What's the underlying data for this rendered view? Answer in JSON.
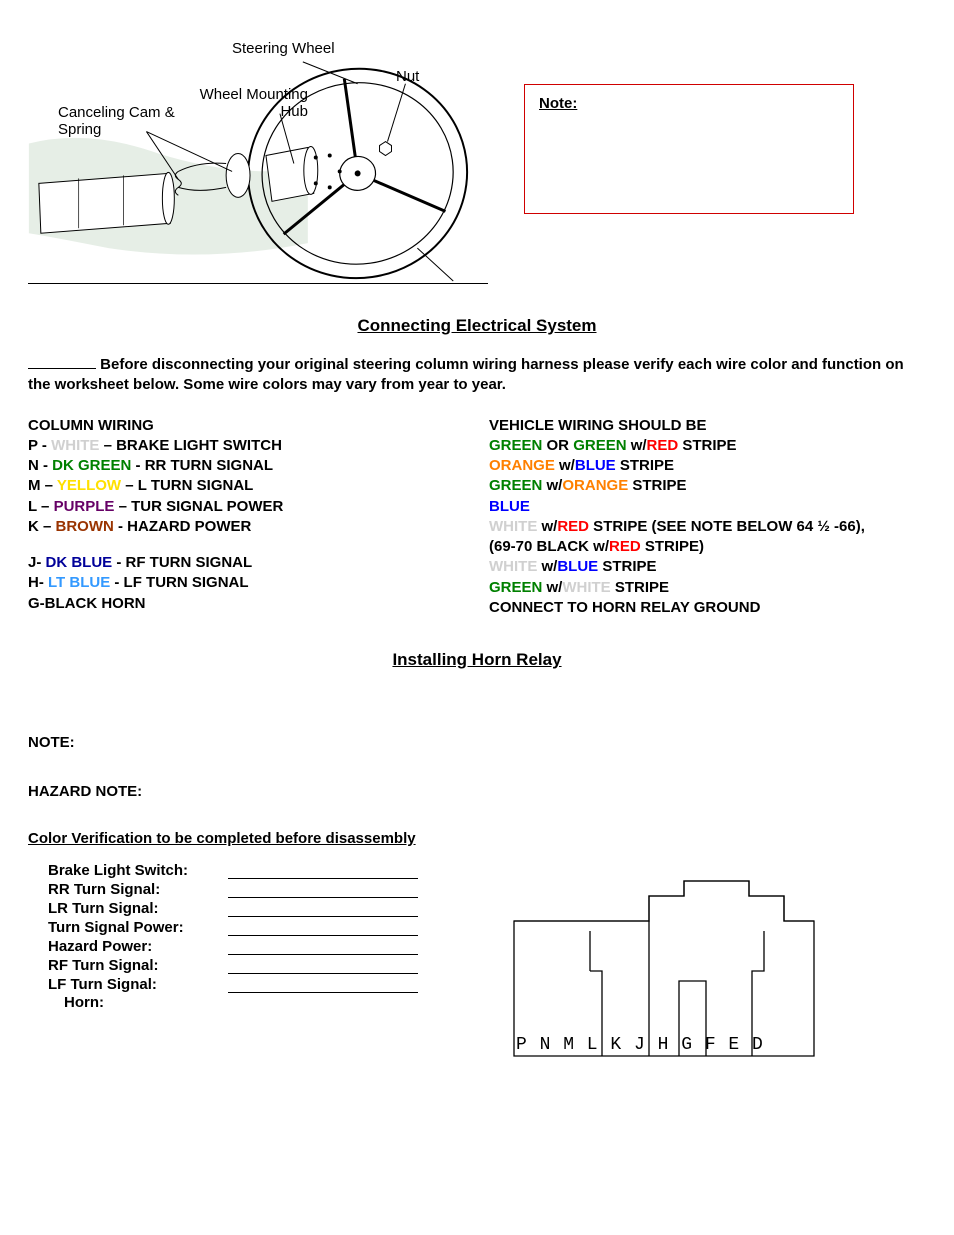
{
  "diagram": {
    "labels": {
      "steering_wheel": "Steering Wheel",
      "nut": "Nut",
      "wheel_mounting_hub": "Wheel Mounting\nHub",
      "canceling_cam": "Canceling Cam &\nSpring"
    }
  },
  "note_box": {
    "title": "Note:"
  },
  "section1": {
    "title": "Connecting Electrical System",
    "intro": " Before disconnecting your original steering column wiring harness please verify each wire color and function on the worksheet below. Some wire colors may vary from year to year."
  },
  "column_wiring": {
    "header": "COLUMN WIRING",
    "rows": [
      {
        "pin": "P - ",
        "color_class": "white",
        "color": "WHITE",
        "desc": " – BRAKE LIGHT SWITCH"
      },
      {
        "pin": "N - ",
        "color_class": "dkgreen",
        "color": "DK GREEN",
        "desc": " - RR TURN SIGNAL"
      },
      {
        "pin": "M – ",
        "color_class": "yellow",
        "color": "YELLOW",
        "desc": " – L TURN SIGNAL"
      },
      {
        "pin": "L – ",
        "color_class": "purple",
        "color": "PURPLE",
        "desc": " – TUR SIGNAL POWER"
      },
      {
        "pin": "K – ",
        "color_class": "brown",
        "color": "BROWN",
        "desc": " - HAZARD POWER"
      },
      {
        "spacer": true
      },
      {
        "pin": "J- ",
        "color_class": "dkblue",
        "color": "DK BLUE",
        "desc": " - RF TURN SIGNAL"
      },
      {
        "pin": "H- ",
        "color_class": "ltblue",
        "color": "LT BLUE",
        "desc": " - LF TURN SIGNAL"
      },
      {
        "pin": "G-",
        "color_class": "",
        "color": "BLACK",
        "desc": " HORN"
      }
    ]
  },
  "vehicle_wiring": {
    "header": "VEHICLE WIRING SHOULD BE",
    "rows": [
      [
        {
          "c": "green",
          "t": "GREEN"
        },
        {
          "c": "",
          "t": " OR "
        },
        {
          "c": "green",
          "t": "GREEN"
        },
        {
          "c": "",
          "t": " w/"
        },
        {
          "c": "red",
          "t": "RED"
        },
        {
          "c": "",
          "t": " STRIPE"
        }
      ],
      [
        {
          "c": "orange",
          "t": "ORANGE"
        },
        {
          "c": "",
          "t": " w/"
        },
        {
          "c": "blue",
          "t": "BLUE"
        },
        {
          "c": "",
          "t": " STRIPE"
        }
      ],
      [
        {
          "c": "green",
          "t": "GREEN"
        },
        {
          "c": "",
          "t": " w/"
        },
        {
          "c": "orange",
          "t": "ORANGE"
        },
        {
          "c": "",
          "t": " STRIPE"
        }
      ],
      [
        {
          "c": "blue",
          "t": "BLUE"
        }
      ],
      [
        {
          "c": "white",
          "t": "WHITE"
        },
        {
          "c": "",
          "t": " w/"
        },
        {
          "c": "red",
          "t": "RED"
        },
        {
          "c": "",
          "t": " STRIPE (SEE NOTE BELOW 64 ½ -66),"
        }
      ],
      [
        {
          "c": "",
          "t": "(69-70 BLACK w/"
        },
        {
          "c": "red",
          "t": "RED"
        },
        {
          "c": "",
          "t": " STRIPE)"
        }
      ],
      [
        {
          "c": "white",
          "t": "WHITE"
        },
        {
          "c": "",
          "t": " w/"
        },
        {
          "c": "blue",
          "t": "BLUE"
        },
        {
          "c": "",
          "t": " STRIPE"
        }
      ],
      [
        {
          "c": "green",
          "t": "GREEN"
        },
        {
          "c": "",
          "t": " w/"
        },
        {
          "c": "white",
          "t": "WHITE"
        },
        {
          "c": "",
          "t": " STRIPE"
        }
      ],
      [
        {
          "c": "",
          "t": "CONNECT TO HORN RELAY GROUND"
        }
      ]
    ]
  },
  "section2": {
    "title": "Installing Horn Relay"
  },
  "note_label": "NOTE:",
  "hazard_label": "HAZARD NOTE:",
  "verify": {
    "header": "Color Verification to be completed before disassembly",
    "items": [
      "Brake Light Switch:",
      "RR Turn Signal:",
      "LR Turn Signal:",
      "Turn Signal Power:",
      "Hazard Power:",
      "RF Turn Signal:",
      "LF Turn Signal:"
    ],
    "horn": "Horn:"
  },
  "connector": {
    "letters": "P   N   M  L K J        H G F        E D"
  }
}
